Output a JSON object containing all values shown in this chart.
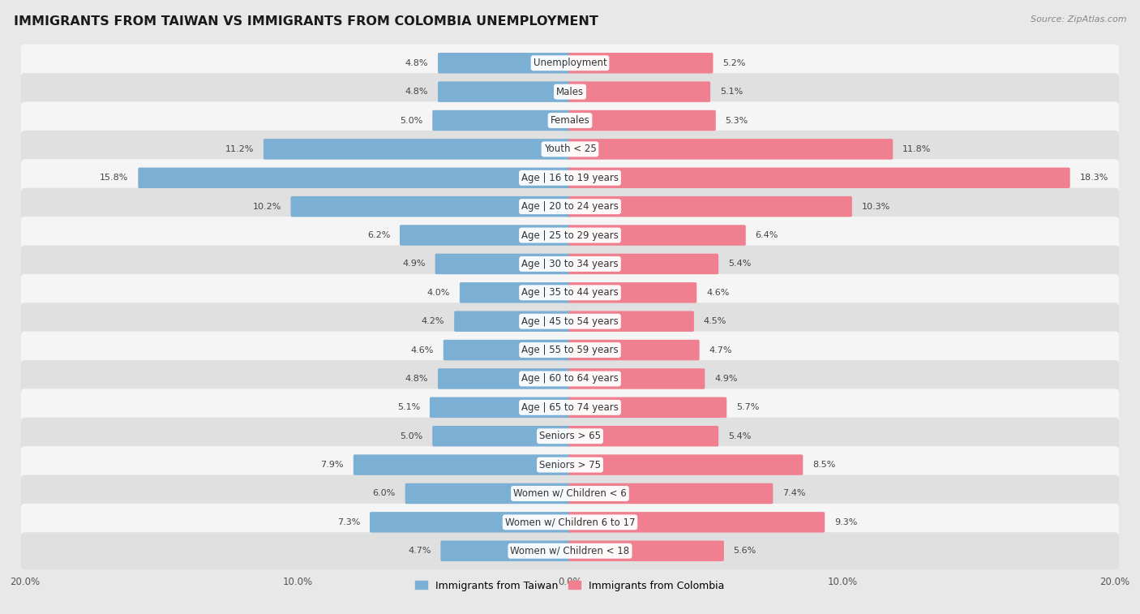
{
  "title": "IMMIGRANTS FROM TAIWAN VS IMMIGRANTS FROM COLOMBIA UNEMPLOYMENT",
  "source": "Source: ZipAtlas.com",
  "categories": [
    "Unemployment",
    "Males",
    "Females",
    "Youth < 25",
    "Age | 16 to 19 years",
    "Age | 20 to 24 years",
    "Age | 25 to 29 years",
    "Age | 30 to 34 years",
    "Age | 35 to 44 years",
    "Age | 45 to 54 years",
    "Age | 55 to 59 years",
    "Age | 60 to 64 years",
    "Age | 65 to 74 years",
    "Seniors > 65",
    "Seniors > 75",
    "Women w/ Children < 6",
    "Women w/ Children 6 to 17",
    "Women w/ Children < 18"
  ],
  "taiwan_values": [
    4.8,
    4.8,
    5.0,
    11.2,
    15.8,
    10.2,
    6.2,
    4.9,
    4.0,
    4.2,
    4.6,
    4.8,
    5.1,
    5.0,
    7.9,
    6.0,
    7.3,
    4.7
  ],
  "colombia_values": [
    5.2,
    5.1,
    5.3,
    11.8,
    18.3,
    10.3,
    6.4,
    5.4,
    4.6,
    4.5,
    4.7,
    4.9,
    5.7,
    5.4,
    8.5,
    7.4,
    9.3,
    5.6
  ],
  "taiwan_color": "#7BAFD4",
  "colombia_color": "#F08090",
  "taiwan_label": "Immigrants from Taiwan",
  "colombia_label": "Immigrants from Colombia",
  "axis_limit": 20.0,
  "bg_color": "#e8e8e8",
  "row_color_odd": "#f5f5f5",
  "row_color_even": "#e0e0e0",
  "title_fontsize": 11.5,
  "label_fontsize": 8.5,
  "value_fontsize": 8.0,
  "tick_fontsize": 8.5
}
